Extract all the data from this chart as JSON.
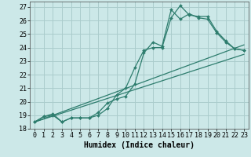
{
  "title": "",
  "xlabel": "Humidex (Indice chaleur)",
  "bg_color": "#cce8e8",
  "line_color": "#2e7d6e",
  "grid_color": "#aacccc",
  "xlim": [
    -0.5,
    23.5
  ],
  "ylim": [
    18,
    27.4
  ],
  "xticks": [
    0,
    1,
    2,
    3,
    4,
    5,
    6,
    7,
    8,
    9,
    10,
    11,
    12,
    13,
    14,
    15,
    16,
    17,
    18,
    19,
    20,
    21,
    22,
    23
  ],
  "yticks": [
    18,
    19,
    20,
    21,
    22,
    23,
    24,
    25,
    26,
    27
  ],
  "line1_x": [
    0,
    1,
    2,
    3,
    4,
    5,
    6,
    7,
    8,
    9,
    10,
    11,
    12,
    13,
    14,
    15,
    16,
    17,
    18,
    19,
    20,
    21,
    22,
    23
  ],
  "line1_y": [
    18.5,
    18.9,
    19.0,
    18.5,
    18.8,
    18.8,
    18.8,
    19.0,
    19.5,
    20.5,
    21.0,
    22.5,
    23.8,
    24.0,
    24.0,
    26.2,
    27.1,
    26.4,
    26.3,
    26.3,
    25.2,
    24.5,
    23.9,
    23.8
  ],
  "line2_x": [
    0,
    1,
    2,
    3,
    4,
    5,
    6,
    7,
    8,
    9,
    10,
    11,
    12,
    13,
    14,
    15,
    16,
    17,
    18,
    19,
    20,
    21,
    22,
    23
  ],
  "line2_y": [
    18.5,
    18.9,
    19.1,
    18.5,
    18.8,
    18.8,
    18.8,
    19.2,
    19.9,
    20.2,
    20.4,
    21.3,
    23.6,
    24.4,
    24.1,
    26.8,
    26.1,
    26.5,
    26.2,
    26.1,
    25.1,
    24.4,
    23.9,
    23.8
  ],
  "line3_x": [
    0,
    23
  ],
  "line3_y": [
    18.5,
    23.5
  ],
  "line4_x": [
    0,
    23
  ],
  "line4_y": [
    18.5,
    24.2
  ],
  "tick_fontsize": 6,
  "label_fontsize": 7
}
